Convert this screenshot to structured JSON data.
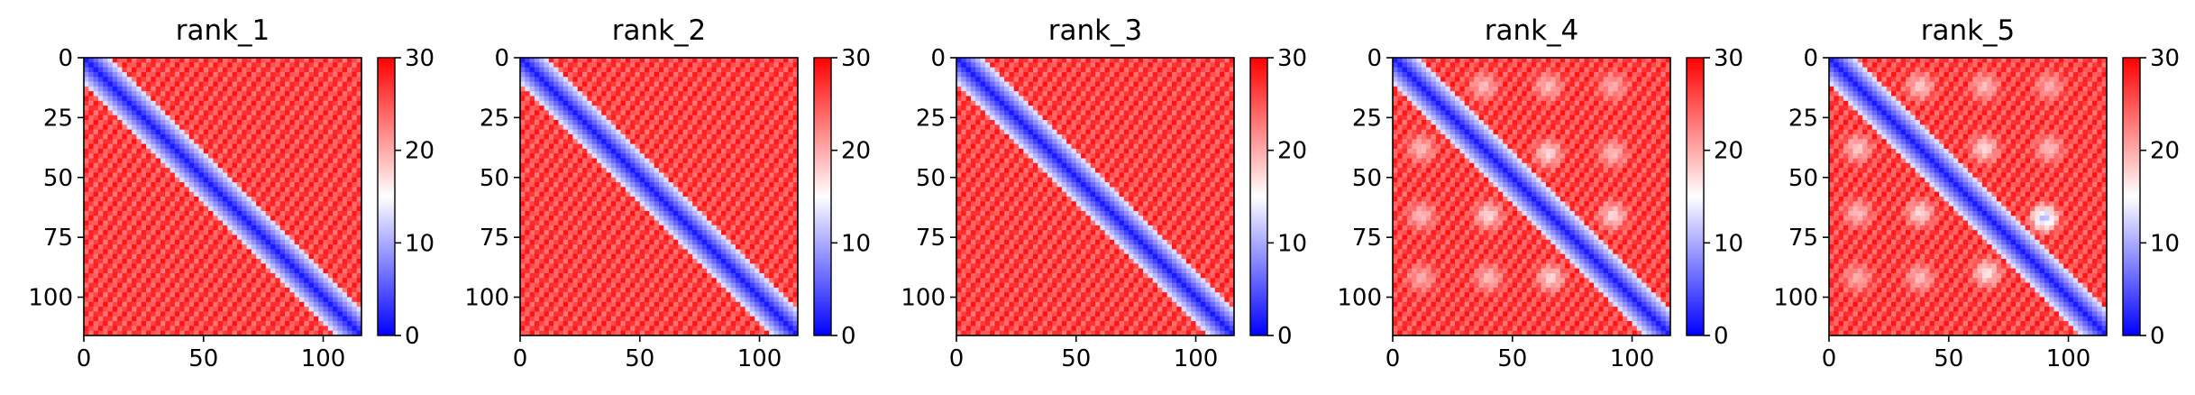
{
  "chart_data": [
    {
      "type": "heatmap",
      "title": "rank_1",
      "x_ticks": [
        "0",
        "50",
        "100"
      ],
      "y_ticks": [
        "0",
        "25",
        "50",
        "75",
        "100"
      ],
      "xlim": [
        0,
        116
      ],
      "ylim": [
        116,
        0
      ],
      "colorbar": {
        "ticks": [
          "0",
          "10",
          "20",
          "30"
        ],
        "range": [
          0,
          30
        ],
        "colormap": "bwr"
      },
      "diagonal_band_halfwidth": 5,
      "hotspots": []
    },
    {
      "type": "heatmap",
      "title": "rank_2",
      "x_ticks": [
        "0",
        "50",
        "100"
      ],
      "y_ticks": [
        "0",
        "25",
        "50",
        "75",
        "100"
      ],
      "xlim": [
        0,
        116
      ],
      "ylim": [
        116,
        0
      ],
      "colorbar": {
        "ticks": [
          "0",
          "10",
          "20",
          "30"
        ],
        "range": [
          0,
          30
        ],
        "colormap": "bwr"
      },
      "diagonal_band_halfwidth": 5,
      "hotspots": []
    },
    {
      "type": "heatmap",
      "title": "rank_3",
      "x_ticks": [
        "0",
        "50",
        "100"
      ],
      "y_ticks": [
        "0",
        "25",
        "50",
        "75",
        "100"
      ],
      "xlim": [
        0,
        116
      ],
      "ylim": [
        116,
        0
      ],
      "colorbar": {
        "ticks": [
          "0",
          "10",
          "20",
          "30"
        ],
        "range": [
          0,
          30
        ],
        "colormap": "bwr"
      },
      "diagonal_band_halfwidth": 5,
      "hotspots": []
    },
    {
      "type": "heatmap",
      "title": "rank_4",
      "x_ticks": [
        "0",
        "50",
        "100"
      ],
      "y_ticks": [
        "0",
        "25",
        "50",
        "75",
        "100"
      ],
      "xlim": [
        0,
        116
      ],
      "ylim": [
        116,
        0
      ],
      "colorbar": {
        "ticks": [
          "0",
          "10",
          "20",
          "30"
        ],
        "range": [
          0,
          30
        ],
        "colormap": "bwr"
      },
      "diagonal_band_halfwidth": 5,
      "hotspots": [
        {
          "x": 38,
          "y": 12,
          "value": 18
        },
        {
          "x": 65,
          "y": 12,
          "value": 18
        },
        {
          "x": 92,
          "y": 12,
          "value": 19
        },
        {
          "x": 12,
          "y": 38,
          "value": 18
        },
        {
          "x": 65,
          "y": 40,
          "value": 16
        },
        {
          "x": 92,
          "y": 40,
          "value": 18
        },
        {
          "x": 12,
          "y": 66,
          "value": 18
        },
        {
          "x": 40,
          "y": 66,
          "value": 16
        },
        {
          "x": 92,
          "y": 66,
          "value": 16
        },
        {
          "x": 12,
          "y": 92,
          "value": 19
        },
        {
          "x": 40,
          "y": 92,
          "value": 18
        },
        {
          "x": 66,
          "y": 92,
          "value": 16
        }
      ]
    },
    {
      "type": "heatmap",
      "title": "rank_5",
      "x_ticks": [
        "0",
        "50",
        "100"
      ],
      "y_ticks": [
        "0",
        "25",
        "50",
        "75",
        "100"
      ],
      "xlim": [
        0,
        116
      ],
      "ylim": [
        116,
        0
      ],
      "colorbar": {
        "ticks": [
          "0",
          "10",
          "20",
          "30"
        ],
        "range": [
          0,
          30
        ],
        "colormap": "bwr"
      },
      "diagonal_band_halfwidth": 5,
      "hotspots": [
        {
          "x": 38,
          "y": 12,
          "value": 17
        },
        {
          "x": 65,
          "y": 12,
          "value": 18
        },
        {
          "x": 92,
          "y": 12,
          "value": 19
        },
        {
          "x": 12,
          "y": 38,
          "value": 17
        },
        {
          "x": 65,
          "y": 38,
          "value": 16
        },
        {
          "x": 92,
          "y": 38,
          "value": 18
        },
        {
          "x": 12,
          "y": 65,
          "value": 18
        },
        {
          "x": 38,
          "y": 65,
          "value": 16
        },
        {
          "x": 90,
          "y": 67,
          "value": 9
        },
        {
          "x": 12,
          "y": 92,
          "value": 19
        },
        {
          "x": 38,
          "y": 92,
          "value": 18
        },
        {
          "x": 66,
          "y": 90,
          "value": 15
        }
      ]
    }
  ]
}
